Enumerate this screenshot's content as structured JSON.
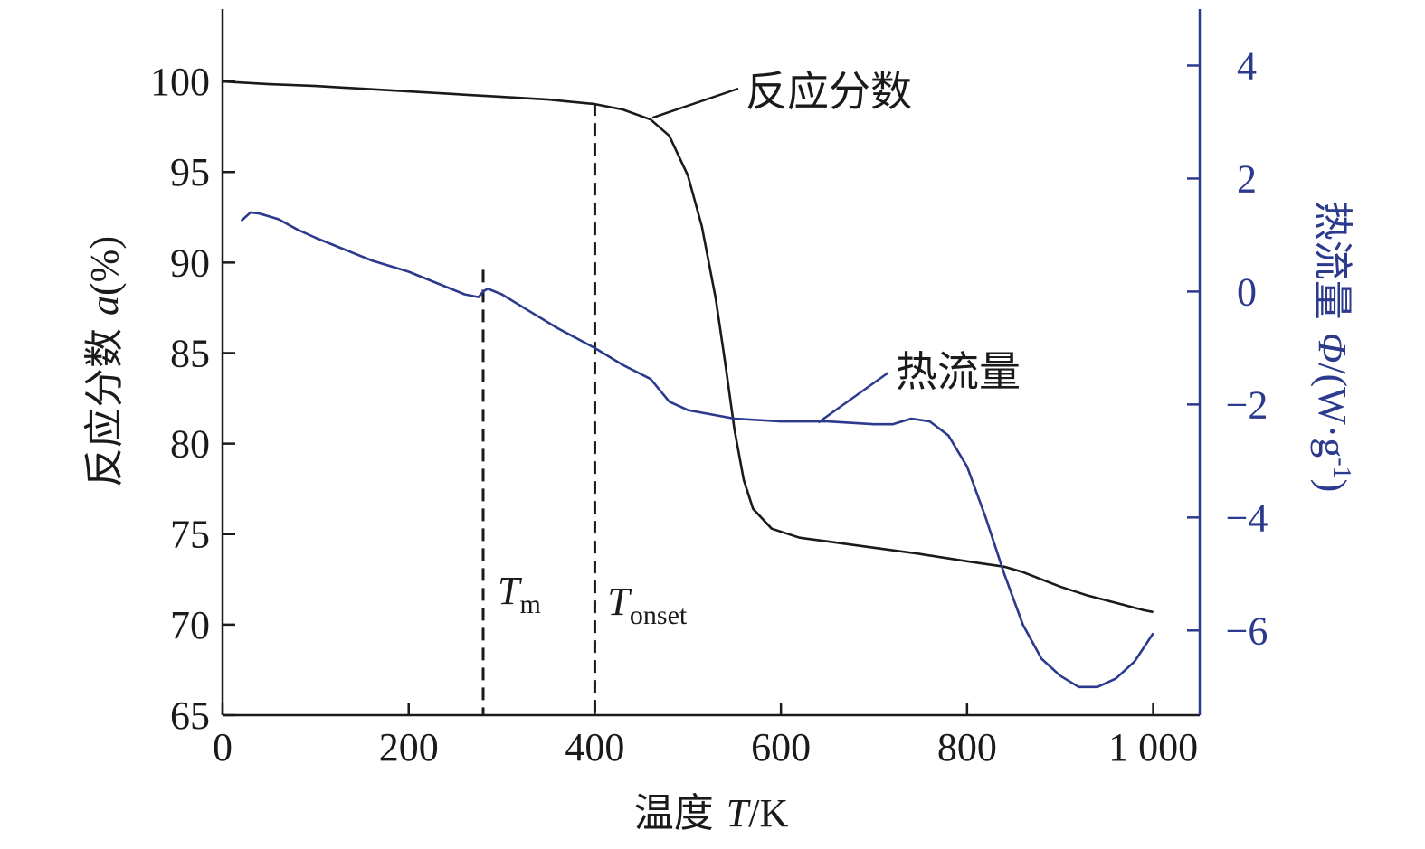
{
  "chart_data": {
    "type": "line",
    "title": "",
    "xlabel": {
      "prefix": "温度 ",
      "symbol": "T",
      "suffix": "/K"
    },
    "ylabel_left": {
      "prefix": "反应分数 ",
      "symbol": "a",
      "suffix": "(%)"
    },
    "ylabel_right": {
      "prefix": "热流量 ",
      "symbol": "Φ",
      "suffix_a": "/(W·g",
      "sup": "-1",
      "suffix_b": ")"
    },
    "xlim": [
      0,
      1050
    ],
    "ylim_left": [
      65,
      104
    ],
    "ylim_right": [
      -7.5,
      5
    ],
    "x_ticks": [
      0,
      200,
      400,
      600,
      800,
      1000
    ],
    "x_tick_labels": [
      "0",
      "200",
      "400",
      "600",
      "800",
      "1 000"
    ],
    "y_left_ticks": [
      65,
      70,
      75,
      80,
      85,
      90,
      95,
      100
    ],
    "y_left_tick_labels": [
      "65",
      "70",
      "75",
      "80",
      "85",
      "90",
      "95",
      "100"
    ],
    "y_right_ticks": [
      -6,
      -4,
      -2,
      0,
      2,
      4
    ],
    "y_right_tick_labels": [
      "−6",
      "−4",
      "−2",
      "0",
      "2",
      "4"
    ],
    "colors": {
      "fraction": "#1a1a1a",
      "heat_flow": "#2b3a8c"
    },
    "series": [
      {
        "name": "反应分数",
        "axis": "left",
        "x": [
          0,
          50,
          100,
          150,
          200,
          250,
          300,
          350,
          400,
          430,
          460,
          480,
          500,
          515,
          530,
          540,
          550,
          560,
          570,
          590,
          620,
          650,
          700,
          750,
          800,
          840,
          860,
          880,
          900,
          930,
          960,
          990,
          1000
        ],
        "values": [
          100.0,
          99.85,
          99.75,
          99.6,
          99.45,
          99.3,
          99.15,
          99.0,
          98.75,
          98.45,
          97.9,
          97.0,
          94.8,
          92.0,
          88.0,
          84.5,
          80.8,
          78.0,
          76.4,
          75.3,
          74.8,
          74.6,
          74.25,
          73.9,
          73.5,
          73.2,
          72.9,
          72.5,
          72.1,
          71.6,
          71.2,
          70.8,
          70.7
        ]
      },
      {
        "name": "热流量",
        "axis": "right",
        "x": [
          20,
          30,
          40,
          60,
          80,
          100,
          130,
          160,
          200,
          230,
          260,
          275,
          280,
          285,
          300,
          330,
          360,
          400,
          430,
          460,
          480,
          500,
          550,
          600,
          650,
          700,
          720,
          740,
          760,
          780,
          800,
          820,
          840,
          860,
          880,
          900,
          920,
          940,
          960,
          980,
          1000
        ],
        "values": [
          1.25,
          1.4,
          1.38,
          1.28,
          1.1,
          0.95,
          0.75,
          0.55,
          0.35,
          0.15,
          -0.05,
          -0.1,
          0.0,
          0.05,
          -0.05,
          -0.35,
          -0.65,
          -1.0,
          -1.3,
          -1.55,
          -1.95,
          -2.1,
          -2.25,
          -2.3,
          -2.3,
          -2.35,
          -2.35,
          -2.25,
          -2.3,
          -2.55,
          -3.1,
          -4.0,
          -5.0,
          -5.9,
          -6.5,
          -6.8,
          -7.0,
          -7.0,
          -6.85,
          -6.55,
          -6.05
        ]
      }
    ],
    "reference_lines": [
      {
        "name": "T_m",
        "x": 280,
        "y_top_left": 89.6,
        "label_main": "T",
        "label_sub": "m"
      },
      {
        "name": "T_onset",
        "x": 400,
        "y_top_left": 98.8,
        "label_main": "T",
        "label_sub": "onset"
      }
    ],
    "annotations": [
      {
        "series": "fraction",
        "text": "反应分数",
        "target_x": 462,
        "target_y": 98.0
      },
      {
        "series": "heat_flow",
        "text": "热流量",
        "target_x": 640,
        "target_y": -2.32
      }
    ]
  }
}
